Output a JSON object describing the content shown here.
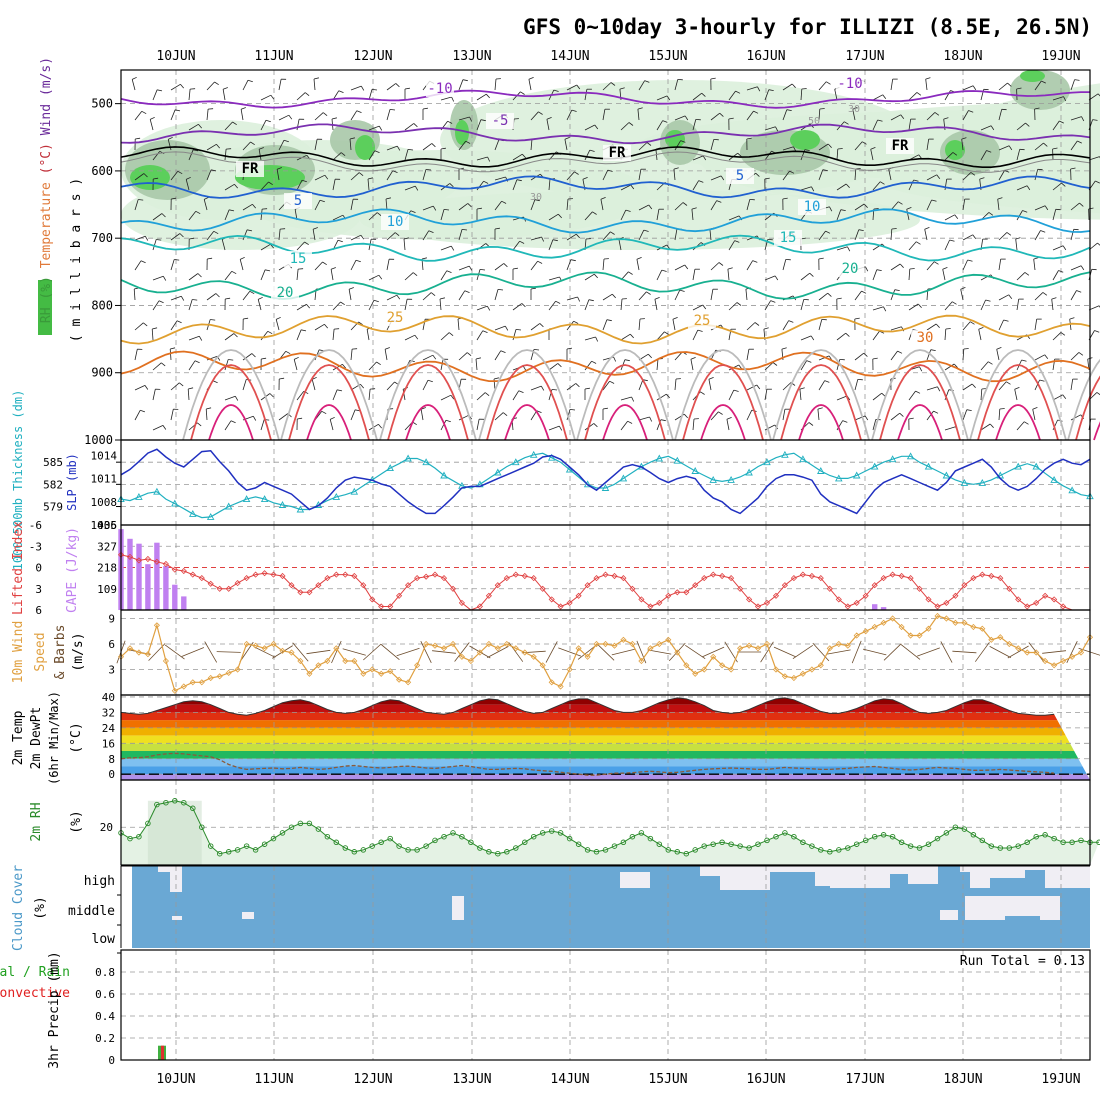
{
  "title": "GFS 0~10day 3-hourly for ILLIZI (8.5E, 26.5N)",
  "x_ticks": [
    "10JUN",
    "11JUN",
    "12JUN",
    "13JUN",
    "14JUN",
    "15JUN",
    "16JUN",
    "17JUN",
    "18JUN",
    "19JUN"
  ],
  "chart_data": [
    {
      "type": "line",
      "panel": "upper-air",
      "ylabel_parts": [
        {
          "text": "RH (%)",
          "color": "#3a9a3a"
        },
        {
          "text": "Temperature",
          "color": "#e07a3a"
        },
        {
          "text": "(°C)",
          "color": "#c0303a"
        },
        {
          "text": "Wind",
          "color": "#6a2a9a"
        },
        {
          "text": "(m/s)",
          "color": "#6a2a9a"
        }
      ],
      "ylabel2": "( m i l l i b a r s )",
      "y_ticks": [
        500,
        600,
        700,
        800,
        900,
        1000
      ],
      "ylim": [
        450,
        1000
      ],
      "isotherms": [
        {
          "label": "-10",
          "p": 493,
          "color": "#8a2abe"
        },
        {
          "label": "-5",
          "p": 545,
          "color": "#7a30b0"
        },
        {
          "label": "FR",
          "p": 580,
          "color": "#000000"
        },
        {
          "label": "5",
          "p": 625,
          "color": "#2060d0"
        },
        {
          "label": "10",
          "p": 675,
          "color": "#20a0d8"
        },
        {
          "label": "15",
          "p": 715,
          "color": "#20b8b8"
        },
        {
          "label": "20",
          "p": 770,
          "color": "#18b090"
        },
        {
          "label": "25",
          "p": 835,
          "color": "#e0a030"
        },
        {
          "label": "30",
          "p": 890,
          "color": "#e07020"
        }
      ],
      "rh_contours": [
        "30",
        "50"
      ]
    },
    {
      "type": "line",
      "panel": "thickness-slp",
      "ylabel_left": "1000-500mb Thickness (dm)",
      "ylabel_right": "SLP (mb)",
      "left_ticks": [
        579,
        582,
        585
      ],
      "right_ticks": [
        1005,
        1008,
        1011,
        1014
      ],
      "left_range": [
        576.5,
        588
      ],
      "right_range": [
        1005,
        1016
      ],
      "series": [
        {
          "name": "thickness",
          "color": "#20b0c0",
          "values": [
            580.0,
            579.8,
            580.3,
            580.8,
            581.0,
            580.0,
            579.4,
            578.7,
            578.0,
            577.5,
            577.6,
            578.3,
            579.0,
            579.5,
            580.0,
            580.3,
            580.0,
            579.5,
            579.2,
            579.0,
            578.6,
            578.6,
            579.2,
            579.8,
            580.3,
            580.6,
            581.0,
            581.8,
            582.6,
            583.4,
            584.2,
            584.8,
            585.5,
            585.5,
            585.0,
            584.2,
            583.2,
            582.5,
            581.8,
            581.5,
            582.0,
            582.8,
            583.6,
            584.4,
            585.0,
            585.6,
            586.0,
            586.2,
            585.6,
            585.0,
            584.0,
            583.0,
            582.0,
            581.5,
            581.5,
            582.0,
            582.8,
            583.6,
            584.4,
            585.0,
            585.5,
            585.8,
            585.2,
            584.5,
            583.8,
            583.2,
            582.6,
            582.4,
            582.6,
            583.0,
            583.6,
            584.4,
            585.0,
            585.6,
            586.0,
            586.2,
            585.4,
            584.6,
            583.8,
            583.2,
            582.8,
            582.8,
            583.2,
            583.8,
            584.4,
            585.0,
            585.4,
            585.8,
            585.8,
            585.0,
            584.4,
            583.8,
            583.2,
            582.6,
            582.2,
            582.0,
            582.2,
            582.6,
            583.2,
            583.8,
            584.4,
            584.8,
            584.4,
            583.5,
            582.6,
            581.8,
            581.2,
            580.6,
            580.4
          ]
        },
        {
          "name": "SLP",
          "color": "#2030c0",
          "values": [
            1011.5,
            1012.2,
            1013.2,
            1014.3,
            1014.8,
            1013.8,
            1013.0,
            1012.5,
            1013.5,
            1014.5,
            1014.6,
            1013.2,
            1012.0,
            1010.5,
            1009.5,
            1009.8,
            1010.5,
            1010.0,
            1009.5,
            1009.0,
            1008.0,
            1007.0,
            1007.5,
            1008.5,
            1009.8,
            1010.8,
            1011.2,
            1011.0,
            1010.8,
            1010.3,
            1010.0,
            1009.0,
            1008.0,
            1007.2,
            1006.5,
            1006.5,
            1007.5,
            1008.6,
            1009.8,
            1010.0,
            1010.0,
            1010.5,
            1011.0,
            1011.5,
            1012.0,
            1012.5,
            1013.0,
            1013.8,
            1014.0,
            1013.5,
            1012.5,
            1011.5,
            1010.2,
            1009.5,
            1010.5,
            1011.5,
            1012.5,
            1012.8,
            1012.5,
            1011.8,
            1011.0,
            1010.5,
            1011.0,
            1011.3,
            1011.0,
            1009.5,
            1008.5,
            1008.0,
            1007.0,
            1006.5,
            1007.5,
            1008.5,
            1010.0,
            1011.0,
            1011.5,
            1011.5,
            1011.2,
            1010.8,
            1009.0,
            1008.0,
            1007.5,
            1007.0,
            1006.5,
            1008.0,
            1009.5,
            1010.5,
            1011.0,
            1011.5,
            1011.0,
            1010.5,
            1010.0,
            1009.5,
            1010.5,
            1012.0,
            1012.5,
            1013.0,
            1013.5,
            1012.5,
            1011.0,
            1010.0,
            1009.5,
            1010.0,
            1011.0,
            1012.2,
            1013.0,
            1013.5,
            1013.0,
            1012.8,
            1013.5
          ]
        }
      ]
    },
    {
      "type": "bar",
      "panel": "cape-li",
      "ylabel_left": "Lifted Index",
      "ylabel_right": "CAPE (J/kg)",
      "li_ticks": [
        "-6",
        "-3",
        "0",
        "3",
        "6"
      ],
      "cape_ticks": [
        "109",
        "218",
        "327",
        "436"
      ],
      "li_range": [
        -6,
        6
      ],
      "cape_range": [
        0,
        436
      ],
      "cape_values": [
        415,
        365,
        340,
        235,
        345,
        225,
        130,
        70,
        0,
        0,
        0,
        0,
        0,
        0,
        0,
        0,
        0,
        0,
        0,
        0,
        0,
        0,
        0,
        0,
        0,
        0,
        0,
        0,
        0,
        0,
        0,
        0,
        0,
        0,
        0,
        0,
        0,
        0,
        0,
        0,
        0,
        0,
        0,
        0,
        0,
        0,
        0,
        0,
        0,
        0,
        0,
        0,
        0,
        0,
        0,
        0,
        0,
        0,
        0,
        0,
        0,
        0,
        0,
        0,
        0,
        0,
        0,
        0,
        0,
        0,
        0,
        0,
        0,
        0,
        0,
        0,
        0,
        0,
        0,
        0,
        0,
        0,
        0,
        0,
        0,
        0,
        0,
        0,
        0,
        0,
        0,
        0,
        0,
        0,
        0,
        0,
        0,
        0,
        0,
        0,
        0,
        0,
        0,
        0,
        0,
        0,
        0,
        0,
        0
      ],
      "cape_extra": [
        {
          "index": 84,
          "value": 30
        },
        {
          "index": 85,
          "value": 15
        }
      ],
      "li_values": [
        -1.8,
        -1.5,
        -1.0,
        -1.2,
        -0.8,
        -0.5,
        0.3,
        0.5,
        1.0,
        1.5,
        2.3,
        3.0,
        3.0,
        2.2,
        1.5,
        1.0,
        0.8,
        1.0,
        1.2,
        2.5,
        3.5,
        3.5,
        2.5,
        1.5,
        1.0,
        1.0,
        1.2,
        2.5,
        4.5,
        5.5,
        5.5,
        4.0,
        2.5,
        1.5,
        1.3,
        1.0,
        1.5,
        3.0,
        5.0,
        6.0,
        5.5,
        4.0,
        2.5,
        1.5,
        1.0,
        1.2,
        1.5,
        3.0,
        4.5,
        5.5,
        5.0,
        4.0,
        2.5,
        1.5,
        1.0,
        1.2,
        1.5,
        3.0,
        4.5,
        5.5,
        5.0,
        4.0,
        3.5,
        3.5,
        2.5,
        1.5,
        1.0,
        1.2,
        1.5,
        3.0,
        4.5,
        5.5,
        5.0,
        4.0,
        2.5,
        1.5,
        1.0,
        1.2,
        1.5,
        3.0,
        4.5,
        5.5,
        5.0,
        4.0,
        2.5,
        1.5,
        1.0,
        1.2,
        1.5,
        3.0,
        4.5,
        5.5,
        5.0,
        4.0,
        2.5,
        1.5,
        1.0,
        1.2,
        1.5,
        3.0,
        4.5,
        5.5,
        5.0,
        4.0,
        4.5,
        5.5,
        6.0,
        6.0,
        6.0
      ]
    },
    {
      "type": "line",
      "panel": "wind10m",
      "ylabel": "10m Wind Speed & Barbs (m/s)",
      "y_ticks": [
        3,
        6,
        9
      ],
      "ylim": [
        0,
        10
      ],
      "values": [
        4.5,
        5.5,
        5.0,
        4.8,
        8.2,
        4.0,
        0.5,
        1.0,
        1.5,
        1.5,
        2.0,
        2.2,
        2.6,
        3.0,
        6.0,
        5.8,
        5.5,
        6.0,
        5.2,
        5.0,
        4.0,
        2.5,
        3.5,
        4.0,
        5.5,
        4.0,
        4.0,
        2.5,
        3.0,
        2.5,
        2.8,
        1.8,
        1.5,
        3.5,
        6.0,
        5.8,
        5.5,
        6.0,
        4.5,
        4.0,
        5.0,
        6.0,
        5.5,
        6.0,
        5.5,
        5.0,
        4.5,
        3.5,
        1.5,
        1.0,
        3.0,
        5.5,
        4.5,
        6.0,
        6.0,
        5.8,
        6.5,
        6.0,
        4.0,
        5.5,
        6.0,
        6.5,
        5.0,
        3.5,
        2.5,
        3.0,
        4.5,
        3.5,
        3.0,
        5.5,
        5.8,
        5.5,
        6.0,
        3.0,
        2.2,
        2.0,
        2.5,
        3.0,
        3.5,
        5.5,
        6.0,
        5.8,
        7.0,
        7.5,
        8.0,
        8.5,
        9.0,
        8.0,
        7.0,
        7.0,
        7.8,
        9.3,
        9.0,
        8.5,
        8.5,
        8.0,
        7.8,
        6.5,
        6.8,
        6.0,
        5.5,
        5.0,
        5.0,
        4.0,
        3.5,
        4.0,
        4.5,
        5.0,
        6.8
      ]
    },
    {
      "type": "area",
      "panel": "temp2m",
      "ylabel": "2m Temp 2m DewPt (6hr Min/Max) (°C)",
      "y_ticks": [
        0,
        8,
        16,
        24,
        32,
        40
      ],
      "ylim": [
        -3,
        41
      ],
      "band_colors": [
        "#b090e8",
        "#4aa0e8",
        "#7ec0f0",
        "#20b860",
        "#c8e040",
        "#f0e020",
        "#f0b000",
        "#f07000",
        "#e03010",
        "#c01010",
        "#900000"
      ],
      "temp": [
        32,
        31.5,
        31,
        31.5,
        33,
        34.5,
        36,
        37.5,
        38,
        37.5,
        36,
        34,
        32,
        31,
        30.5,
        31.5,
        33,
        35,
        37,
        38,
        38.5,
        37.5,
        35.5,
        33.5,
        32,
        31.5,
        32,
        33.5,
        35.5,
        37.5,
        38.5,
        38,
        36,
        34,
        32,
        31.5,
        31,
        32,
        34,
        36,
        38,
        39,
        38.5,
        36.5,
        34.5,
        32.5,
        31.5,
        32,
        34,
        36,
        38,
        39,
        39,
        37,
        35,
        33,
        32,
        32,
        33,
        35,
        37,
        38.5,
        39.5,
        39,
        37.5,
        35.5,
        33,
        32,
        31.5,
        32,
        33.5,
        35.5,
        37.5,
        39,
        39.5,
        38.5,
        36.5,
        34.5,
        32.5,
        31.5,
        31.5,
        32.5,
        34,
        36,
        38,
        39,
        38.5,
        36.5,
        34,
        32,
        31.5,
        32,
        33,
        35,
        37,
        38.5,
        38.5,
        37,
        35,
        33,
        31.5,
        31,
        30.5,
        30.5,
        31
      ],
      "dewpt": [
        8,
        8.5,
        8.6,
        9.0,
        10.0,
        10.5,
        10.8,
        10.5,
        10.0,
        9.5,
        9.0,
        7.5,
        5.0,
        3.5,
        2.5,
        2.8,
        3.0,
        3.2,
        2.8,
        3.0,
        3.5,
        3.0,
        2.5,
        2.8,
        3.5,
        4.2,
        4.5,
        4.0,
        3.5,
        3.2,
        3.5,
        4.0,
        4.2,
        3.8,
        3.2,
        3.0,
        3.5,
        4.0,
        4.5,
        4.0,
        3.2,
        2.5,
        2.5,
        2.8,
        3.0,
        2.8,
        2.2,
        1.8,
        1.5,
        1.0,
        0.5,
        0.0,
        -0.5,
        -0.5,
        0.0,
        0.5,
        0.5,
        0.8,
        1.2,
        1.5,
        1.2,
        0.8,
        1.0,
        1.5,
        2.0,
        2.5,
        2.8,
        3.0,
        3.2,
        3.0,
        2.8,
        2.5,
        2.5,
        3.0,
        3.5,
        3.2,
        3.0,
        2.8,
        2.5,
        2.5,
        2.8,
        3.0,
        3.5,
        3.8,
        4.0,
        3.5,
        3.0,
        2.5,
        2.2,
        2.5,
        3.0,
        3.5,
        3.2,
        3.0,
        2.5,
        2.0,
        2.0,
        2.2,
        2.5,
        2.2,
        1.8,
        1.5,
        1.2,
        1.0,
        0.5
      ]
    },
    {
      "type": "area",
      "panel": "rh2m",
      "ylabel": "2m RH (%)",
      "y_ticks": [
        20
      ],
      "ylim": [
        0,
        45
      ],
      "values": [
        17,
        14,
        15,
        22,
        32,
        33,
        34,
        33,
        30,
        20,
        10,
        6,
        7,
        8,
        10,
        8,
        11,
        14,
        17,
        20,
        22,
        22,
        19,
        15,
        12,
        9,
        7,
        8,
        10,
        12,
        14,
        10,
        8,
        8,
        10,
        13,
        15,
        17,
        15,
        12,
        9,
        7,
        6,
        7,
        9,
        12,
        15,
        17,
        18,
        17,
        14,
        11,
        8,
        7,
        8,
        10,
        12,
        15,
        17,
        14,
        11,
        8,
        7,
        6,
        8,
        10,
        11,
        12,
        11,
        10,
        9,
        11,
        13,
        15,
        17,
        15,
        12,
        10,
        8,
        7,
        8,
        9,
        11,
        13,
        15,
        16,
        15,
        12,
        10,
        9,
        11,
        14,
        17,
        20,
        19,
        16,
        13,
        10,
        9,
        9,
        10,
        12,
        15,
        16,
        14,
        12,
        12,
        13,
        12,
        12
      ]
    },
    {
      "type": "heatmap",
      "panel": "cloud",
      "ylabel": "Cloud Cover (%)",
      "rows": [
        "high",
        "middle",
        "low"
      ]
    },
    {
      "type": "bar",
      "panel": "precip",
      "ylabel_parts": [
        {
          "text": "tal / Rain",
          "color": "#20a020"
        },
        {
          "text": "Convective",
          "color": "#e02020"
        }
      ],
      "ylabel2": "3hr Precip (mm)",
      "y_ticks": [
        "0",
        "0.2",
        "0.4",
        "0.6",
        "0.8"
      ],
      "ylim": [
        0,
        1.0
      ],
      "annotation": "Run Total = 0.13",
      "bars": [
        {
          "index": 4,
          "total": 0.13,
          "convective": 0.13
        }
      ]
    }
  ]
}
